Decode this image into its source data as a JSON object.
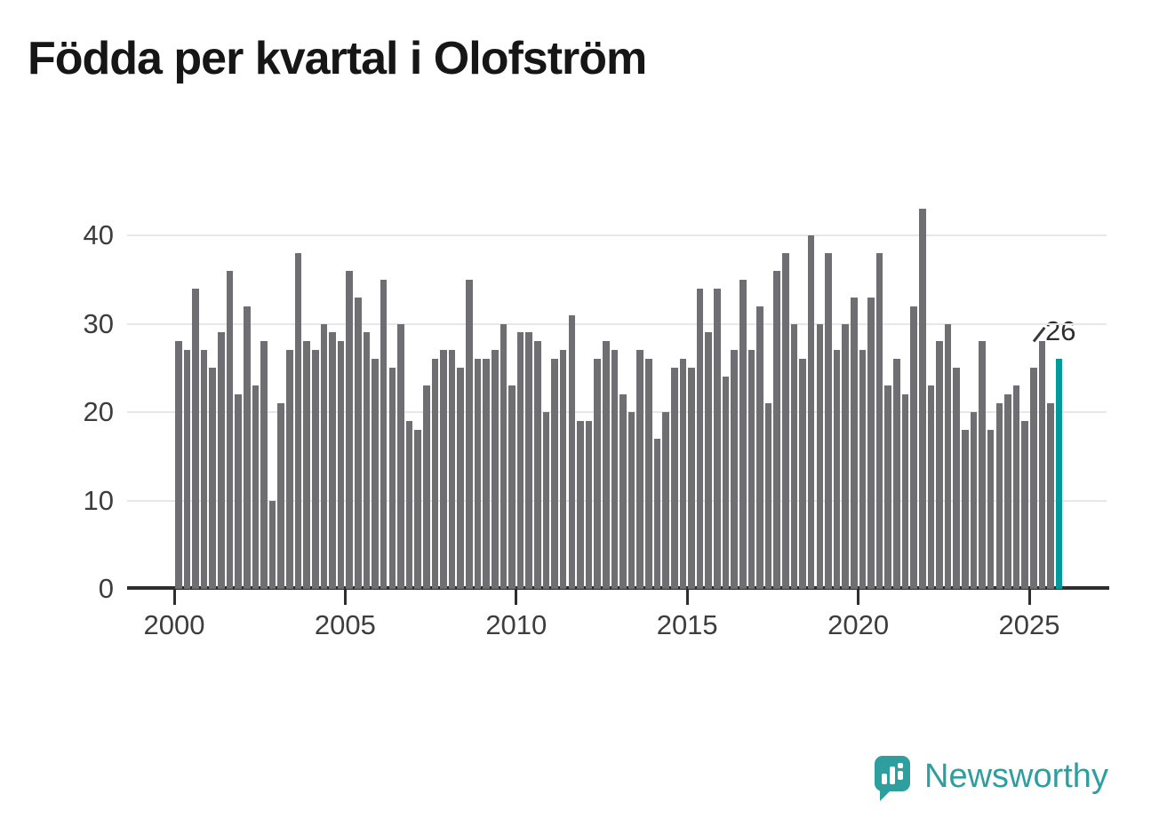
{
  "title": "Födda per kvartal i Olofström",
  "annotation": {
    "label": "26"
  },
  "logo": {
    "text": "Newsworthy"
  },
  "colors": {
    "bar": "#6e6e73",
    "highlight": "#009a9d",
    "logo": "#2f9e9f",
    "grid": "#e7e7e9",
    "axis": "#2e2e2e",
    "tick_text": "#3d3d3d",
    "title_text": "#161616"
  },
  "chart_data": {
    "type": "bar",
    "title": "Födda per kvartal i Olofström",
    "x_unit": "quarter",
    "start_year": 2000,
    "end_year": 2025,
    "values_by_year": {
      "2000": [
        28,
        27,
        34,
        27
      ],
      "2001": [
        25,
        29,
        36,
        22
      ],
      "2002": [
        32,
        23,
        28,
        10
      ],
      "2003": [
        21,
        27,
        38,
        28
      ],
      "2004": [
        27,
        30,
        29,
        28
      ],
      "2005": [
        36,
        33,
        29,
        26
      ],
      "2006": [
        35,
        25,
        30,
        19
      ],
      "2007": [
        18,
        23,
        26,
        27
      ],
      "2008": [
        27,
        25,
        35,
        26
      ],
      "2009": [
        26,
        27,
        30,
        23
      ],
      "2010": [
        29,
        29,
        28,
        20
      ],
      "2011": [
        26,
        27,
        31,
        19
      ],
      "2012": [
        19,
        26,
        28,
        27
      ],
      "2013": [
        22,
        20,
        27,
        26
      ],
      "2014": [
        17,
        20,
        25,
        26
      ],
      "2015": [
        25,
        34,
        29,
        34
      ],
      "2016": [
        24,
        27,
        35,
        27
      ],
      "2017": [
        32,
        21,
        36,
        38
      ],
      "2018": [
        30,
        26,
        40,
        30
      ],
      "2019": [
        38,
        27,
        30,
        33
      ],
      "2020": [
        27,
        33,
        38,
        23
      ],
      "2021": [
        26,
        22,
        32,
        43
      ],
      "2022": [
        23,
        28,
        30,
        25
      ],
      "2023": [
        18,
        20,
        28,
        18
      ],
      "2024": [
        21,
        22,
        23,
        19
      ],
      "2025": [
        25,
        28,
        21,
        26
      ]
    },
    "highlight": {
      "quarter": "2025 Q4",
      "value": 26,
      "label": "26"
    },
    "ylim": [
      0,
      44
    ],
    "yticks": [
      0,
      10,
      20,
      30,
      40
    ],
    "xticks": [
      2000,
      2005,
      2010,
      2015,
      2020,
      2025
    ],
    "grid": "horizontal",
    "legend": "none"
  }
}
